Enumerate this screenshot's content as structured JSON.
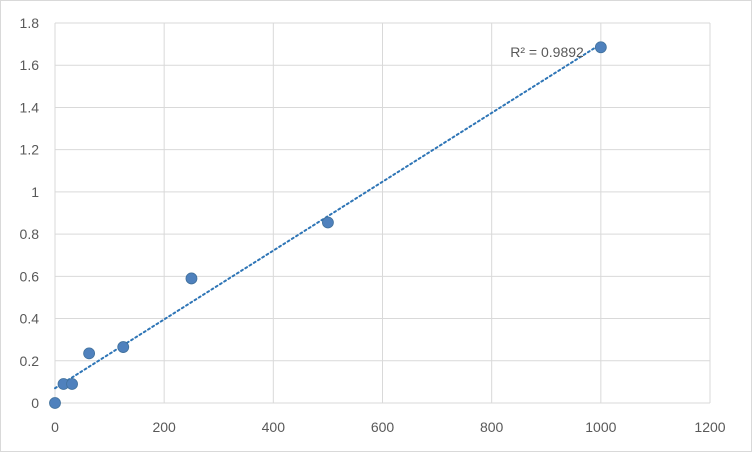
{
  "chart_data": {
    "type": "scatter",
    "title": "",
    "xlabel": "",
    "ylabel": "",
    "xlim": [
      0,
      1200
    ],
    "ylim": [
      0,
      1.8
    ],
    "x_ticks": [
      0,
      200,
      400,
      600,
      800,
      1000,
      1200
    ],
    "y_ticks": [
      0,
      0.2,
      0.4,
      0.6,
      0.8,
      1,
      1.2,
      1.4,
      1.6,
      1.8
    ],
    "x_tick_labels": [
      "0",
      "200",
      "400",
      "600",
      "800",
      "1000",
      "1200"
    ],
    "y_tick_labels": [
      "0",
      "0.2",
      "0.4",
      "0.6",
      "0.8",
      "1",
      "1.2",
      "1.4",
      "1.6",
      "1.8"
    ],
    "grid": true,
    "legend": "none",
    "series": [
      {
        "points": [
          {
            "x": 0,
            "y": 0.0
          },
          {
            "x": 15.6,
            "y": 0.09
          },
          {
            "x": 31.25,
            "y": 0.09
          },
          {
            "x": 62.5,
            "y": 0.235
          },
          {
            "x": 125,
            "y": 0.265
          },
          {
            "x": 250,
            "y": 0.59
          },
          {
            "x": 500,
            "y": 0.855
          },
          {
            "x": 1000,
            "y": 1.685
          }
        ],
        "color": "#4f81bd"
      }
    ],
    "trendline": {
      "type": "linear",
      "from": {
        "x": 0,
        "y": 0.07
      },
      "to": {
        "x": 1000,
        "y": 1.7
      },
      "color": "#2e75b6",
      "style": "dotted",
      "r2_label": "R² = 0.9892"
    }
  },
  "colors": {
    "grid": "#d9d9d9",
    "axis_text": "#595959",
    "marker": "#4f81bd"
  }
}
